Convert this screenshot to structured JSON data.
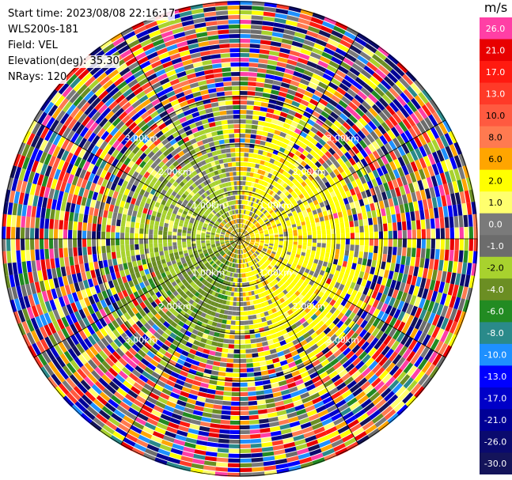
{
  "header": {
    "start_time": "Start time: 2023/08/08 22:16:17",
    "site": "WLS200s-181",
    "field": "Field: VEL",
    "elevation": "Elevation(deg): 35.30",
    "nrays": "NRays: 120"
  },
  "colorbar": {
    "unit": "m/s",
    "levels": [
      {
        "label": "26.0",
        "color": "#ff3fa5"
      },
      {
        "label": "21.0",
        "color": "#e80000"
      },
      {
        "label": "17.0",
        "color": "#ff1a10"
      },
      {
        "label": "13.0",
        "color": "#ff3a28"
      },
      {
        "label": "10.0",
        "color": "#ff5a40"
      },
      {
        "label": "8.0",
        "color": "#ff7a50"
      },
      {
        "label": "6.0",
        "color": "#ffa500"
      },
      {
        "label": "2.0",
        "color": "#ffff00"
      },
      {
        "label": "1.0",
        "color": "#ffff6e"
      },
      {
        "label": "0.0",
        "color": "#7a7a7a"
      },
      {
        "label": "-1.0",
        "color": "#6c6c6c"
      },
      {
        "label": "-2.0",
        "color": "#a8d22e"
      },
      {
        "label": "-4.0",
        "color": "#6b8e23"
      },
      {
        "label": "-6.0",
        "color": "#228b22"
      },
      {
        "label": "-8.0",
        "color": "#2a8a8a"
      },
      {
        "label": "-10.0",
        "color": "#1e90ff"
      },
      {
        "label": "-13.0",
        "color": "#0000ff"
      },
      {
        "label": "-17.0",
        "color": "#0000c8"
      },
      {
        "label": "-21.0",
        "color": "#000096"
      },
      {
        "label": "-26.0",
        "color": "#0a0a6e"
      },
      {
        "label": "-30.0",
        "color": "#14145a"
      }
    ]
  },
  "chart_data": {
    "type": "heatmap",
    "projection": "ppi",
    "nrays": 120,
    "range_rings_km": [
      1,
      2,
      3
    ],
    "range_labels": [
      "1.00km",
      "2.00km",
      "3.00km"
    ],
    "max_range_km": 3.5,
    "zones": [
      {
        "region": "east",
        "velocity_mps": 2.0
      },
      {
        "region": "north-northeast",
        "velocity_mps": 2.0
      },
      {
        "region": "southeast",
        "velocity_mps": 2.0
      },
      {
        "region": "west",
        "velocity_mps": -2.0
      },
      {
        "region": "southwest",
        "velocity_mps": -4.0
      },
      {
        "region": "outer",
        "velocity_mps": "noise"
      }
    ]
  }
}
